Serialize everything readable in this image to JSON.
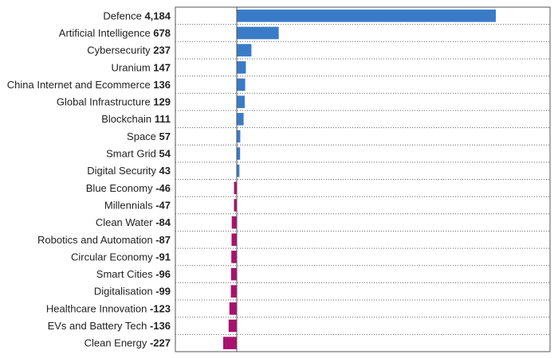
{
  "colors": {
    "positive": "#3a7bc8",
    "negative": "#a8126e",
    "frame": "#555555",
    "gridline": "#666666"
  },
  "chart_data": {
    "type": "bar",
    "orientation": "horizontal",
    "categories": [
      "Defence",
      "Artificial Intelligence",
      "Cybersecurity",
      "Uranium",
      "China Internet and Ecommerce",
      "Global Infrastructure",
      "Blockchain",
      "Space",
      "Smart Grid",
      "Digital Security",
      "Blue Economy",
      "Millennials",
      "Clean Water",
      "Robotics and Automation",
      "Circular Economy",
      "Smart Cities",
      "Digitalisation",
      "Healthcare Innovation",
      "EVs and Battery Tech",
      "Clean Energy"
    ],
    "values": [
      4184,
      678,
      237,
      147,
      136,
      129,
      111,
      57,
      54,
      43,
      -46,
      -47,
      -84,
      -87,
      -91,
      -96,
      -99,
      -123,
      -136,
      -227
    ],
    "value_labels": [
      "4,184",
      "678",
      "237",
      "147",
      "136",
      "129",
      "111",
      "57",
      "54",
      "43",
      "-46",
      "-47",
      "-84",
      "-87",
      "-91",
      "-96",
      "-99",
      "-123",
      "-136",
      "-227"
    ],
    "xlim": [
      -227,
      4184
    ],
    "title": "",
    "xlabel": "",
    "ylabel": "",
    "legend": "none",
    "grid": "dotted horizontal row separators"
  }
}
